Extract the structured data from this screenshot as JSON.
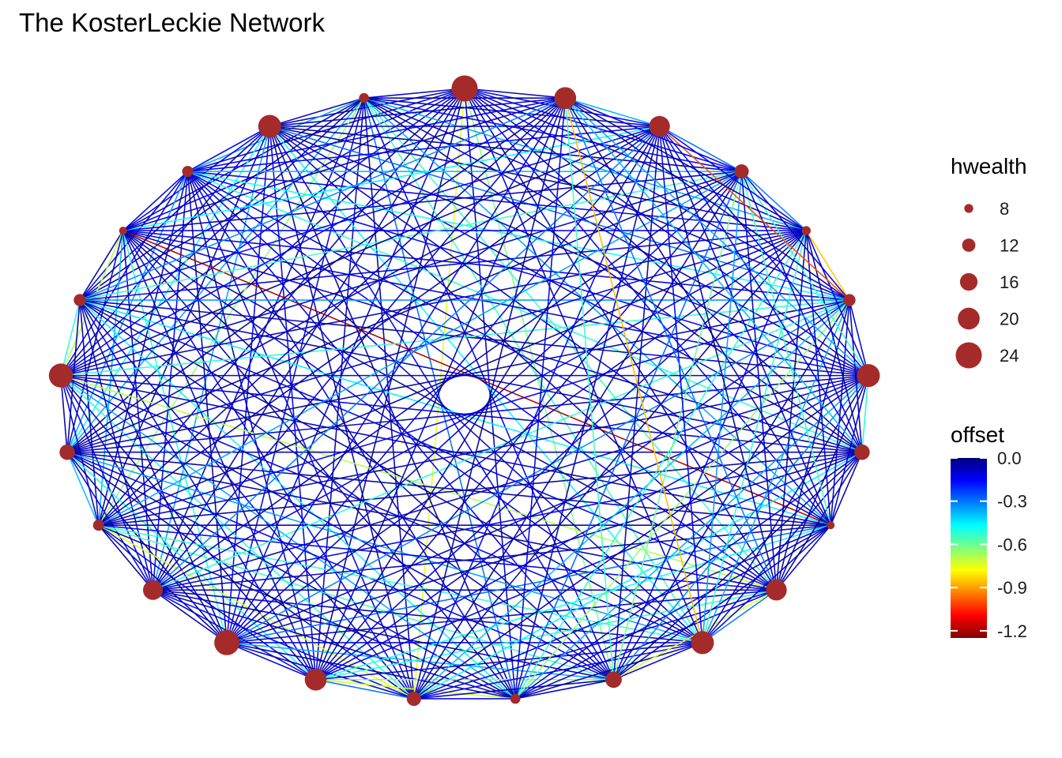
{
  "title": "The KosterLeckie Network",
  "node_color": "#a52a2a",
  "nodes": [
    {
      "hwealth": 24
    },
    {
      "hwealth": 9
    },
    {
      "hwealth": 21
    },
    {
      "hwealth": 10
    },
    {
      "hwealth": 7
    },
    {
      "hwealth": 11
    },
    {
      "hwealth": 22
    },
    {
      "hwealth": 14
    },
    {
      "hwealth": 10
    },
    {
      "hwealth": 18
    },
    {
      "hwealth": 23
    },
    {
      "hwealth": 20
    },
    {
      "hwealth": 13
    },
    {
      "hwealth": 9
    },
    {
      "hwealth": 15
    },
    {
      "hwealth": 21
    },
    {
      "hwealth": 19
    },
    {
      "hwealth": 7
    },
    {
      "hwealth": 14
    },
    {
      "hwealth": 21
    },
    {
      "hwealth": 11
    },
    {
      "hwealth": 8
    },
    {
      "hwealth": 13
    },
    {
      "hwealth": 19
    },
    {
      "hwealth": 20
    }
  ],
  "legend_size": {
    "title": "hwealth",
    "values": [
      8,
      12,
      16,
      20,
      24
    ]
  },
  "legend_color": {
    "title": "offset",
    "breaks": [
      "0.0",
      "-0.3",
      "-0.6",
      "-0.9",
      "-1.2"
    ],
    "min": -1.25,
    "max": 0,
    "colors": [
      "#00007f",
      "#0000ff",
      "#007fff",
      "#00ffff",
      "#7fff7f",
      "#ffff00",
      "#ff7f00",
      "#ff0000",
      "#7f0000"
    ]
  }
}
